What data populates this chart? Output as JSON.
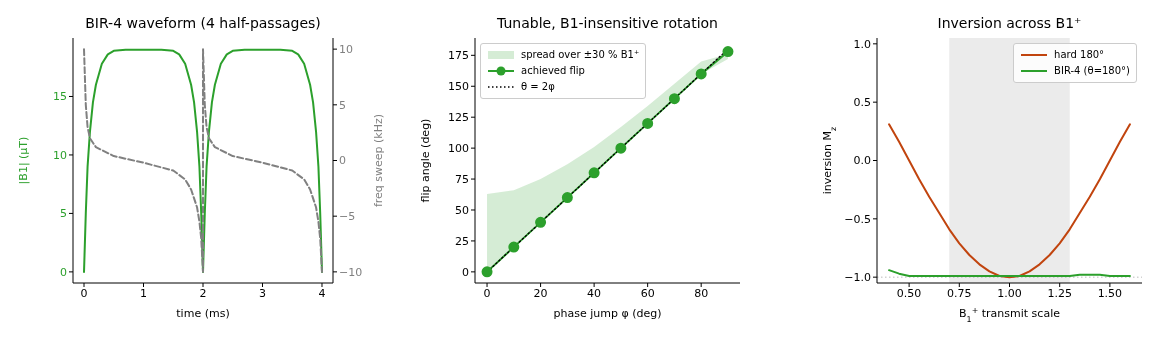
{
  "chart_data": [
    {
      "type": "line",
      "title": "BIR-4 waveform (4 half-passages)",
      "xlabel": "time (ms)",
      "ylabel": "|B1| (µT)",
      "y2label": "freq sweep (kHz)",
      "xlim": [
        -0.185,
        4.185
      ],
      "xticks": [
        0,
        1,
        2,
        3,
        4
      ],
      "ylim": [
        -0.95,
        20
      ],
      "yticks": [
        0,
        5,
        10,
        15
      ],
      "y2lim": [
        -11,
        11
      ],
      "y2ticks": [
        {
          "value": -10,
          "label": "−10"
        },
        {
          "value": -5,
          "label": "−5"
        },
        0,
        5,
        10
      ],
      "series": [
        {
          "color": "#2ca02c",
          "x": [
            0,
            0.03,
            0.06,
            0.1,
            0.15,
            0.2,
            0.3,
            0.4,
            0.5,
            0.7,
            1.3,
            1.5,
            1.6,
            1.7,
            1.8,
            1.85,
            1.9,
            1.94,
            1.97,
            2.0,
            2.03,
            2.06,
            2.1,
            2.15,
            2.2,
            2.3,
            2.4,
            2.5,
            2.7,
            3.3,
            3.5,
            3.6,
            3.7,
            3.8,
            3.85,
            3.9,
            3.94,
            3.97,
            4.0
          ],
          "values": [
            0,
            5,
            9,
            12,
            14.5,
            16,
            17.8,
            18.6,
            18.9,
            19,
            19,
            18.9,
            18.6,
            17.8,
            16,
            14.5,
            12,
            9,
            5,
            0,
            5,
            9,
            12,
            14.5,
            16,
            17.8,
            18.6,
            18.9,
            19,
            19,
            18.9,
            18.6,
            17.8,
            16,
            14.5,
            12,
            9,
            5,
            0
          ]
        },
        {
          "color": "#808080",
          "axis": "y2",
          "line_style": "dashed",
          "x": [
            0,
            0.03,
            0.06,
            0.1,
            0.2,
            0.5,
            1.0,
            1.5,
            1.7,
            1.8,
            1.9,
            1.94,
            1.97,
            2.0,
            2.0,
            2.03,
            2.06,
            2.1,
            2.2,
            2.5,
            3.0,
            3.5,
            3.7,
            3.8,
            3.9,
            3.94,
            3.97,
            4.0
          ],
          "values": [
            10,
            5,
            3,
            2,
            1.2,
            0.4,
            -0.2,
            -0.9,
            -1.7,
            -2.6,
            -4.2,
            -5.5,
            -7,
            -10,
            10,
            5,
            3,
            2,
            1.2,
            0.4,
            -0.2,
            -0.9,
            -1.7,
            -2.6,
            -4.2,
            -5.5,
            -7,
            -10
          ]
        }
      ]
    },
    {
      "type": "line",
      "title": "Tunable, B1-insensitive rotation",
      "annotations": [
        "spread over ±30 % B1⁺"
      ],
      "xlabel": "phase jump  φ (deg)",
      "ylabel": "flip angle (deg)",
      "xlim": [
        -4.5,
        94.5
      ],
      "xticks": [
        0,
        20,
        40,
        60,
        80
      ],
      "ylim": [
        -9,
        189
      ],
      "yticks": [
        0,
        25,
        50,
        75,
        100,
        125,
        150,
        175
      ],
      "legend": "top left",
      "x": [
        0,
        10,
        20,
        30,
        40,
        50,
        60,
        70,
        80,
        90
      ],
      "series": [
        {
          "name": "achieved flip",
          "color": "#2ca02c",
          "marker": "circle",
          "values": [
            0,
            20,
            40,
            60,
            80,
            100,
            120,
            140,
            160,
            178
          ],
          "lower": [
            0,
            20,
            40,
            60,
            80,
            100,
            120,
            140,
            160,
            172
          ],
          "upper": [
            63,
            66,
            75,
            87,
            101,
            117,
            134,
            152,
            170,
            176
          ]
        },
        {
          "name": "θ = 2φ",
          "color": "#000000",
          "line_style": "dotted",
          "values": [
            0,
            20,
            40,
            60,
            80,
            100,
            120,
            140,
            160,
            180
          ]
        }
      ]
    },
    {
      "type": "line",
      "title": "Inversion across B1⁺",
      "xlabel": "B$_{1}$$^{+}$ transmit scale",
      "ylabel": "inversion M$_{z}$",
      "xlim": [
        0.34,
        1.66
      ],
      "xticks": [
        {
          "value": 0.5,
          "label": "0.50"
        },
        {
          "value": 0.75,
          "label": "0.75"
        },
        {
          "value": 1,
          "label": "1.00"
        },
        {
          "value": 1.25,
          "label": "1.25"
        },
        {
          "value": 1.5,
          "label": "1.50"
        }
      ],
      "ylim": [
        -1.05,
        1.05
      ],
      "yticks": [
        {
          "value": -1,
          "label": "−1.0"
        },
        {
          "value": -0.5,
          "label": "−0.5"
        },
        {
          "value": 0,
          "label": "0.0"
        },
        {
          "value": 0.5,
          "label": "0.5"
        },
        {
          "value": 1,
          "label": "1.0"
        }
      ],
      "legend": "top right",
      "bands": [
        {
          "axis": "x",
          "from": 0.7,
          "to": 1.3,
          "color": "#ebebeb"
        }
      ],
      "ref_lines": [
        {
          "axis": "y",
          "value": -1,
          "color": "#aaaaaa",
          "line_style": "dotted"
        }
      ],
      "x": [
        0.4,
        0.45,
        0.5,
        0.55,
        0.6,
        0.65,
        0.7,
        0.75,
        0.8,
        0.85,
        0.9,
        0.95,
        1.0,
        1.05,
        1.1,
        1.15,
        1.2,
        1.25,
        1.3,
        1.35,
        1.4,
        1.45,
        1.5,
        1.55,
        1.6
      ],
      "series": [
        {
          "name": "hard 180°",
          "color": "#c1440e",
          "values": [
            0.31,
            0.16,
            0,
            -0.16,
            -0.31,
            -0.45,
            -0.59,
            -0.71,
            -0.81,
            -0.89,
            -0.95,
            -0.99,
            -1,
            -0.99,
            -0.95,
            -0.89,
            -0.81,
            -0.71,
            -0.59,
            -0.45,
            -0.31,
            -0.16,
            0,
            0.16,
            0.31
          ]
        },
        {
          "name": "BIR-4 (θ=180°)",
          "color": "#2ca02c",
          "values": [
            -0.94,
            -0.97,
            -0.99,
            -0.99,
            -0.99,
            -0.99,
            -0.99,
            -0.99,
            -0.99,
            -0.99,
            -0.99,
            -0.99,
            -0.99,
            -0.99,
            -0.99,
            -0.99,
            -0.99,
            -0.99,
            -0.99,
            -0.98,
            -0.98,
            -0.98,
            -0.99,
            -0.99,
            -0.99
          ]
        }
      ]
    }
  ]
}
